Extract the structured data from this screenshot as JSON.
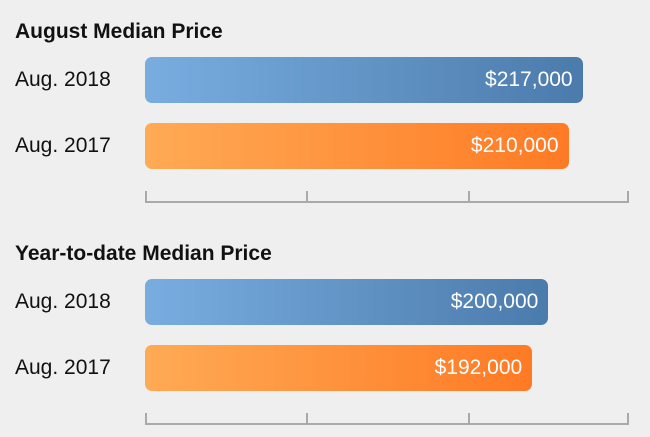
{
  "chart_data": [
    {
      "type": "bar",
      "orientation": "horizontal",
      "title": "August Median Price",
      "categories": [
        "Aug. 2018",
        "Aug. 2017"
      ],
      "values": [
        217000,
        210000
      ],
      "value_labels": [
        "$217,000",
        "$210,000"
      ],
      "colors": [
        "#5a8bbf",
        "#ff8a35"
      ],
      "xlim": [
        0,
        240000
      ],
      "xticks": [
        0,
        80000,
        160000,
        240000
      ],
      "grid": false,
      "legend": "none"
    },
    {
      "type": "bar",
      "orientation": "horizontal",
      "title": "Year-to-date Median Price",
      "categories": [
        "Aug. 2018",
        "Aug. 2017"
      ],
      "values": [
        200000,
        192000
      ],
      "value_labels": [
        "$200,000",
        "$192,000"
      ],
      "colors": [
        "#5a8bbf",
        "#ff8a35"
      ],
      "xlim": [
        0,
        240000
      ],
      "xticks": [
        0,
        80000,
        160000,
        240000
      ],
      "grid": false,
      "legend": "none"
    }
  ]
}
